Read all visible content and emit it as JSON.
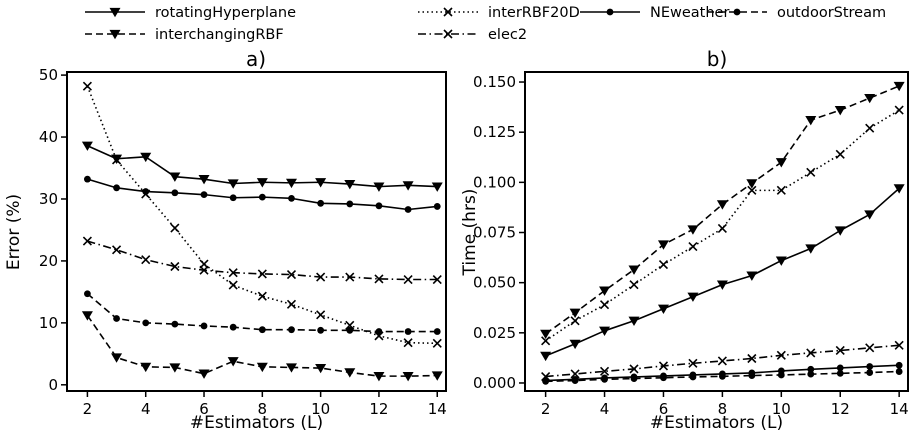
{
  "legend": {
    "entries": [
      {
        "name": "rotatingHyperplane",
        "dash": "solid",
        "marker": "triangle"
      },
      {
        "name": "interRBF20D",
        "dash": "dotted",
        "marker": "x"
      },
      {
        "name": "NEweather",
        "dash": "solid",
        "marker": "dot"
      },
      {
        "name": "outdoorStream",
        "dash": "dashed",
        "marker": "dot"
      },
      {
        "name": "interchangingRBF",
        "dash": "dashed",
        "marker": "triangle"
      },
      {
        "name": "elec2",
        "dash": "dashdot",
        "marker": "x"
      }
    ]
  },
  "chart_data": [
    {
      "type": "line",
      "title": "a)",
      "xlabel": "#Estimators (L)",
      "ylabel": "Error (%)",
      "x": [
        2,
        3,
        4,
        5,
        6,
        7,
        8,
        9,
        10,
        11,
        12,
        13,
        14
      ],
      "xlim": [
        1.3,
        14.3
      ],
      "ylim": [
        -1,
        50.5
      ],
      "xticks": [
        2,
        4,
        6,
        8,
        10,
        12,
        14
      ],
      "yticks": [
        0,
        10,
        20,
        30,
        40,
        50
      ],
      "ytick_labels": [
        "0",
        "10",
        "20",
        "30",
        "40",
        "50"
      ],
      "grid": false,
      "series": [
        {
          "name": "rotatingHyperplane",
          "values": [
            38.6,
            36.5,
            36.8,
            33.6,
            33.2,
            32.5,
            32.7,
            32.6,
            32.7,
            32.4,
            32.0,
            32.2,
            32.0
          ]
        },
        {
          "name": "interRBF20D",
          "values": [
            48.2,
            36.3,
            30.8,
            25.3,
            19.5,
            16.1,
            14.3,
            13.0,
            11.3,
            9.6,
            7.9,
            6.8,
            6.7
          ]
        },
        {
          "name": "NEweather",
          "values": [
            33.2,
            31.8,
            31.2,
            31.0,
            30.7,
            30.2,
            30.3,
            30.1,
            29.3,
            29.2,
            28.9,
            28.3,
            28.8
          ]
        },
        {
          "name": "outdoorStream",
          "values": [
            14.7,
            10.7,
            10.0,
            9.8,
            9.5,
            9.3,
            8.9,
            8.9,
            8.8,
            8.8,
            8.6,
            8.6,
            8.6
          ]
        },
        {
          "name": "interchangingRBF",
          "values": [
            11.2,
            4.4,
            2.9,
            2.8,
            1.8,
            3.8,
            2.9,
            2.8,
            2.7,
            2.0,
            1.4,
            1.4,
            1.5
          ]
        },
        {
          "name": "elec2",
          "values": [
            23.2,
            21.8,
            20.2,
            19.1,
            18.5,
            18.1,
            17.9,
            17.8,
            17.4,
            17.4,
            17.1,
            17.0,
            17.0
          ]
        }
      ]
    },
    {
      "type": "line",
      "title": "b)",
      "xlabel": "#Estimators (L)",
      "ylabel": "Time (hrs)",
      "x": [
        2,
        3,
        4,
        5,
        6,
        7,
        8,
        9,
        10,
        11,
        12,
        13,
        14
      ],
      "xlim": [
        1.3,
        14.3
      ],
      "ylim": [
        -0.004,
        0.155
      ],
      "xticks": [
        2,
        4,
        6,
        8,
        10,
        12,
        14
      ],
      "yticks": [
        0,
        0.025,
        0.05,
        0.075,
        0.1,
        0.125,
        0.15
      ],
      "ytick_labels": [
        "0.000",
        "0.025",
        "0.050",
        "0.075",
        "0.100",
        "0.125",
        "0.150"
      ],
      "grid": false,
      "series": [
        {
          "name": "rotatingHyperplane",
          "values": [
            0.0135,
            0.0195,
            0.026,
            0.031,
            0.037,
            0.043,
            0.049,
            0.0535,
            0.061,
            0.067,
            0.076,
            0.084,
            0.097
          ]
        },
        {
          "name": "interRBF20D",
          "values": [
            0.021,
            0.031,
            0.039,
            0.049,
            0.059,
            0.068,
            0.077,
            0.096,
            0.096,
            0.105,
            0.114,
            0.127,
            0.136
          ]
        },
        {
          "name": "NEweather",
          "values": [
            0.0012,
            0.0018,
            0.0025,
            0.003,
            0.0035,
            0.004,
            0.0045,
            0.005,
            0.006,
            0.0068,
            0.0075,
            0.0082,
            0.0088
          ]
        },
        {
          "name": "outdoorStream",
          "values": [
            0.0008,
            0.0012,
            0.0018,
            0.0022,
            0.0026,
            0.003,
            0.0033,
            0.0037,
            0.004,
            0.0044,
            0.0048,
            0.0052,
            0.0057
          ]
        },
        {
          "name": "interchangingRBF",
          "values": [
            0.0245,
            0.035,
            0.046,
            0.0565,
            0.069,
            0.0765,
            0.089,
            0.0995,
            0.11,
            0.131,
            0.136,
            0.142,
            0.148
          ]
        },
        {
          "name": "elec2",
          "values": [
            0.0032,
            0.0045,
            0.0058,
            0.007,
            0.0085,
            0.0098,
            0.011,
            0.0122,
            0.0138,
            0.015,
            0.0162,
            0.0175,
            0.0188
          ]
        }
      ]
    }
  ]
}
